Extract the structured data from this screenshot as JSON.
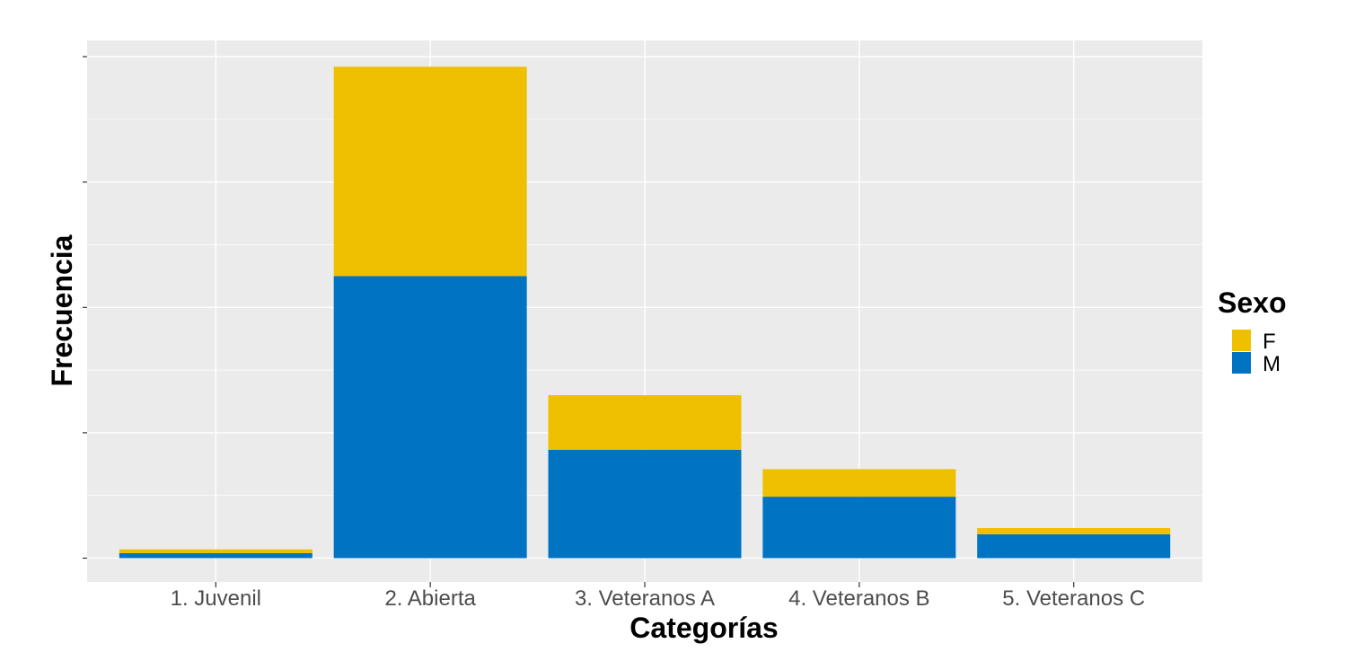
{
  "chart_data": {
    "type": "bar",
    "stacked": true,
    "categories": [
      "1. Juvenil",
      "2. Abierta",
      "3. Veteranos A",
      "4. Veteranos B",
      "5. Veteranos C"
    ],
    "series": [
      {
        "name": "M",
        "color": "#0073C2",
        "values": [
          4,
          225,
          86.5,
          49,
          19
        ]
      },
      {
        "name": "F",
        "color": "#EFC000",
        "values": [
          3,
          167,
          43.5,
          22,
          5
        ]
      }
    ],
    "xlabel": "Categorías",
    "ylabel": "Frecuencia",
    "ylim": [
      -19,
      413
    ],
    "y_tick_values": [
      0,
      100,
      200,
      300,
      400
    ],
    "y_tick_labels_visible": false,
    "legend": {
      "title": "Sexo",
      "order": [
        "F",
        "M"
      ],
      "position": "right"
    },
    "grid": true,
    "panel_background": "#EBEBEB",
    "grid_color": "#FFFFFF"
  }
}
